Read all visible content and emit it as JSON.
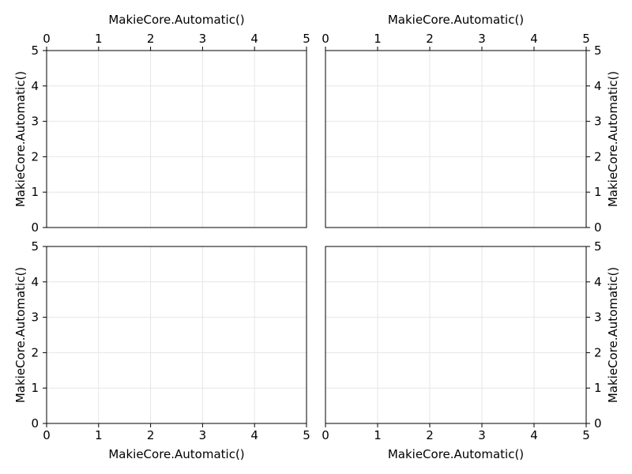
{
  "chart_data": [
    {
      "type": "scatter",
      "position": "top-left",
      "xlabel": "MakieCore.Automatic()",
      "ylabel": "MakieCore.Automatic()",
      "xlabel_side": "top",
      "ylabel_side": "left",
      "xlim": [
        0,
        5
      ],
      "ylim": [
        0,
        5
      ],
      "xticks": [
        "0",
        "1",
        "2",
        "3",
        "4",
        "5"
      ],
      "yticks": [
        "0",
        "1",
        "2",
        "3",
        "4",
        "5"
      ],
      "grid": true,
      "series": []
    },
    {
      "type": "scatter",
      "position": "top-right",
      "xlabel": "MakieCore.Automatic()",
      "ylabel": "MakieCore.Automatic()",
      "xlabel_side": "top",
      "ylabel_side": "right",
      "xlim": [
        0,
        5
      ],
      "ylim": [
        0,
        5
      ],
      "xticks": [
        "0",
        "1",
        "2",
        "3",
        "4",
        "5"
      ],
      "yticks": [
        "0",
        "1",
        "2",
        "3",
        "4",
        "5"
      ],
      "grid": true,
      "series": []
    },
    {
      "type": "scatter",
      "position": "bottom-left",
      "xlabel": "MakieCore.Automatic()",
      "ylabel": "MakieCore.Automatic()",
      "xlabel_side": "bottom",
      "ylabel_side": "left",
      "xlim": [
        0,
        5
      ],
      "ylim": [
        0,
        5
      ],
      "xticks": [
        "0",
        "1",
        "2",
        "3",
        "4",
        "5"
      ],
      "yticks": [
        "0",
        "1",
        "2",
        "3",
        "4",
        "5"
      ],
      "grid": true,
      "series": []
    },
    {
      "type": "scatter",
      "position": "bottom-right",
      "xlabel": "MakieCore.Automatic()",
      "ylabel": "MakieCore.Automatic()",
      "xlabel_side": "bottom",
      "ylabel_side": "right",
      "xlim": [
        0,
        5
      ],
      "ylim": [
        0,
        5
      ],
      "xticks": [
        "0",
        "1",
        "2",
        "3",
        "4",
        "5"
      ],
      "yticks": [
        "0",
        "1",
        "2",
        "3",
        "4",
        "5"
      ],
      "grid": true,
      "series": []
    }
  ]
}
